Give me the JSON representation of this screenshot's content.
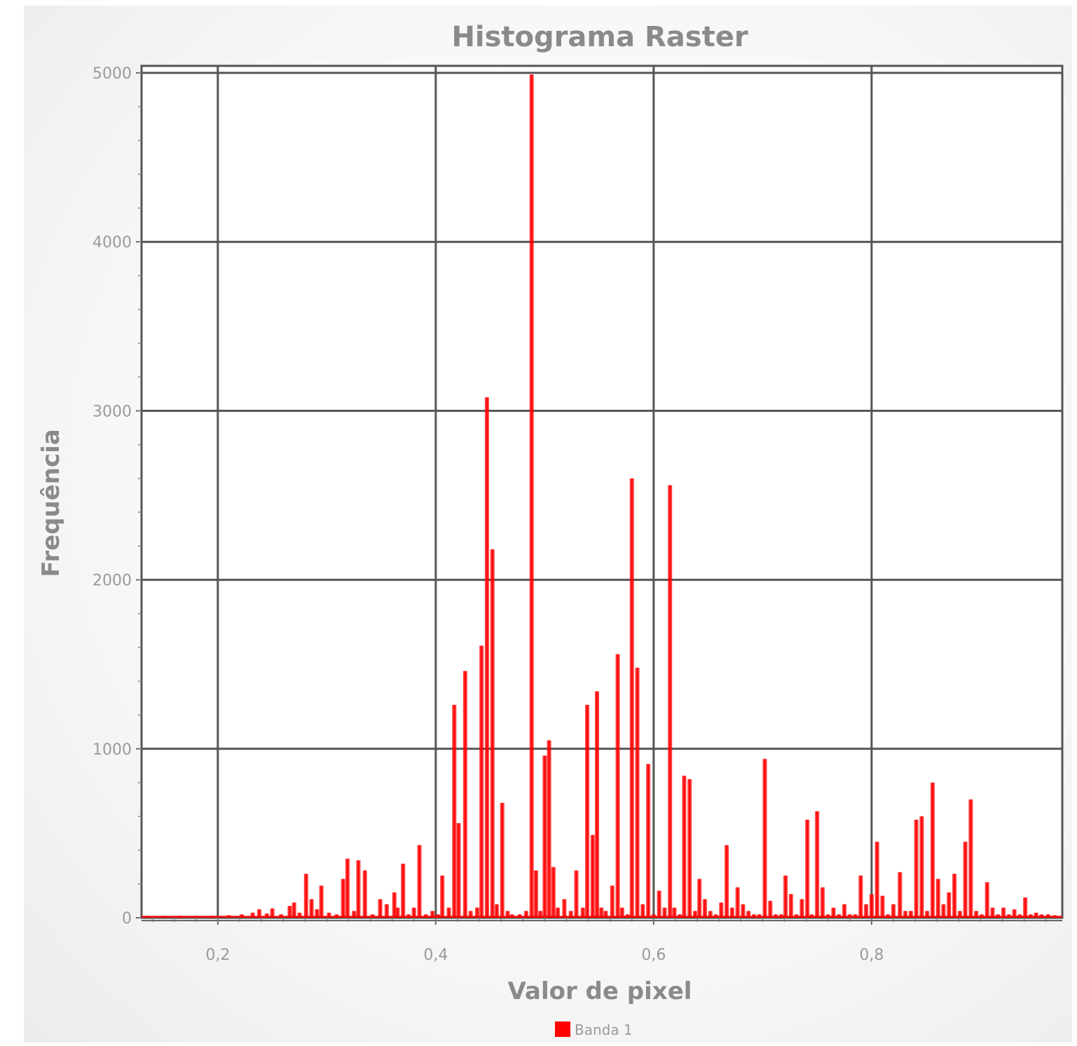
{
  "chart_data": {
    "type": "bar",
    "title": "Histograma Raster",
    "xlabel": "Valor de pixel",
    "ylabel": "Frequência",
    "xlim": [
      0.13,
      0.975
    ],
    "ylim": [
      0,
      5000
    ],
    "x_ticks": [
      0.2,
      0.4,
      0.6,
      0.8
    ],
    "x_tick_labels": [
      "0,2",
      "0,4",
      "0,6",
      "0,8"
    ],
    "y_ticks": [
      0,
      1000,
      2000,
      3000,
      4000,
      5000
    ],
    "y_tick_labels": [
      "0",
      "1000",
      "2000",
      "3000",
      "4000",
      "5000"
    ],
    "grid": true,
    "legend_position": "bottom-center",
    "series": [
      {
        "name": "Banda 1",
        "color": "#ff0000",
        "x": [
          0.135,
          0.15,
          0.165,
          0.18,
          0.195,
          0.21,
          0.222,
          0.232,
          0.238,
          0.245,
          0.25,
          0.258,
          0.266,
          0.27,
          0.275,
          0.281,
          0.286,
          0.291,
          0.295,
          0.302,
          0.309,
          0.315,
          0.319,
          0.325,
          0.329,
          0.335,
          0.342,
          0.349,
          0.355,
          0.362,
          0.365,
          0.37,
          0.375,
          0.38,
          0.385,
          0.391,
          0.397,
          0.402,
          0.406,
          0.412,
          0.417,
          0.421,
          0.427,
          0.432,
          0.438,
          0.442,
          0.447,
          0.452,
          0.456,
          0.461,
          0.466,
          0.47,
          0.477,
          0.483,
          0.488,
          0.492,
          0.496,
          0.5,
          0.504,
          0.508,
          0.512,
          0.518,
          0.524,
          0.529,
          0.535,
          0.539,
          0.544,
          0.548,
          0.552,
          0.556,
          0.562,
          0.567,
          0.571,
          0.576,
          0.58,
          0.585,
          0.59,
          0.595,
          0.6,
          0.605,
          0.61,
          0.615,
          0.619,
          0.624,
          0.628,
          0.633,
          0.638,
          0.642,
          0.647,
          0.652,
          0.657,
          0.662,
          0.667,
          0.672,
          0.677,
          0.682,
          0.687,
          0.692,
          0.697,
          0.702,
          0.707,
          0.712,
          0.717,
          0.721,
          0.726,
          0.731,
          0.736,
          0.741,
          0.745,
          0.75,
          0.755,
          0.76,
          0.765,
          0.77,
          0.775,
          0.78,
          0.785,
          0.79,
          0.795,
          0.8,
          0.805,
          0.81,
          0.815,
          0.82,
          0.826,
          0.831,
          0.836,
          0.841,
          0.846,
          0.851,
          0.856,
          0.861,
          0.866,
          0.871,
          0.876,
          0.881,
          0.886,
          0.891,
          0.896,
          0.901,
          0.906,
          0.911,
          0.916,
          0.921,
          0.926,
          0.931,
          0.936,
          0.941,
          0.946,
          0.951,
          0.956,
          0.962,
          0.968
        ],
        "values": [
          10,
          10,
          12,
          10,
          12,
          15,
          20,
          30,
          50,
          25,
          55,
          20,
          70,
          90,
          30,
          260,
          110,
          50,
          190,
          30,
          20,
          230,
          350,
          40,
          340,
          280,
          20,
          110,
          80,
          150,
          60,
          320,
          20,
          60,
          430,
          20,
          40,
          20,
          250,
          60,
          1260,
          560,
          1460,
          40,
          60,
          1610,
          3080,
          2180,
          80,
          680,
          40,
          20,
          20,
          40,
          4990,
          280,
          40,
          960,
          1050,
          300,
          60,
          110,
          40,
          280,
          60,
          1260,
          490,
          1340,
          60,
          40,
          190,
          1560,
          60,
          20,
          2600,
          1480,
          80,
          910,
          20,
          160,
          60,
          2560,
          60,
          20,
          840,
          820,
          40,
          230,
          110,
          40,
          20,
          90,
          430,
          60,
          180,
          80,
          40,
          20,
          20,
          940,
          100,
          20,
          20,
          250,
          140,
          20,
          110,
          580,
          20,
          630,
          180,
          20,
          60,
          20,
          80,
          20,
          20,
          250,
          80,
          140,
          450,
          130,
          20,
          80,
          270,
          40,
          40,
          580,
          600,
          40,
          800,
          230,
          80,
          150,
          260,
          40,
          450,
          700,
          40,
          20,
          210,
          60,
          20,
          60,
          20,
          50,
          20,
          120,
          20,
          30,
          20,
          20,
          15
        ]
      }
    ]
  }
}
